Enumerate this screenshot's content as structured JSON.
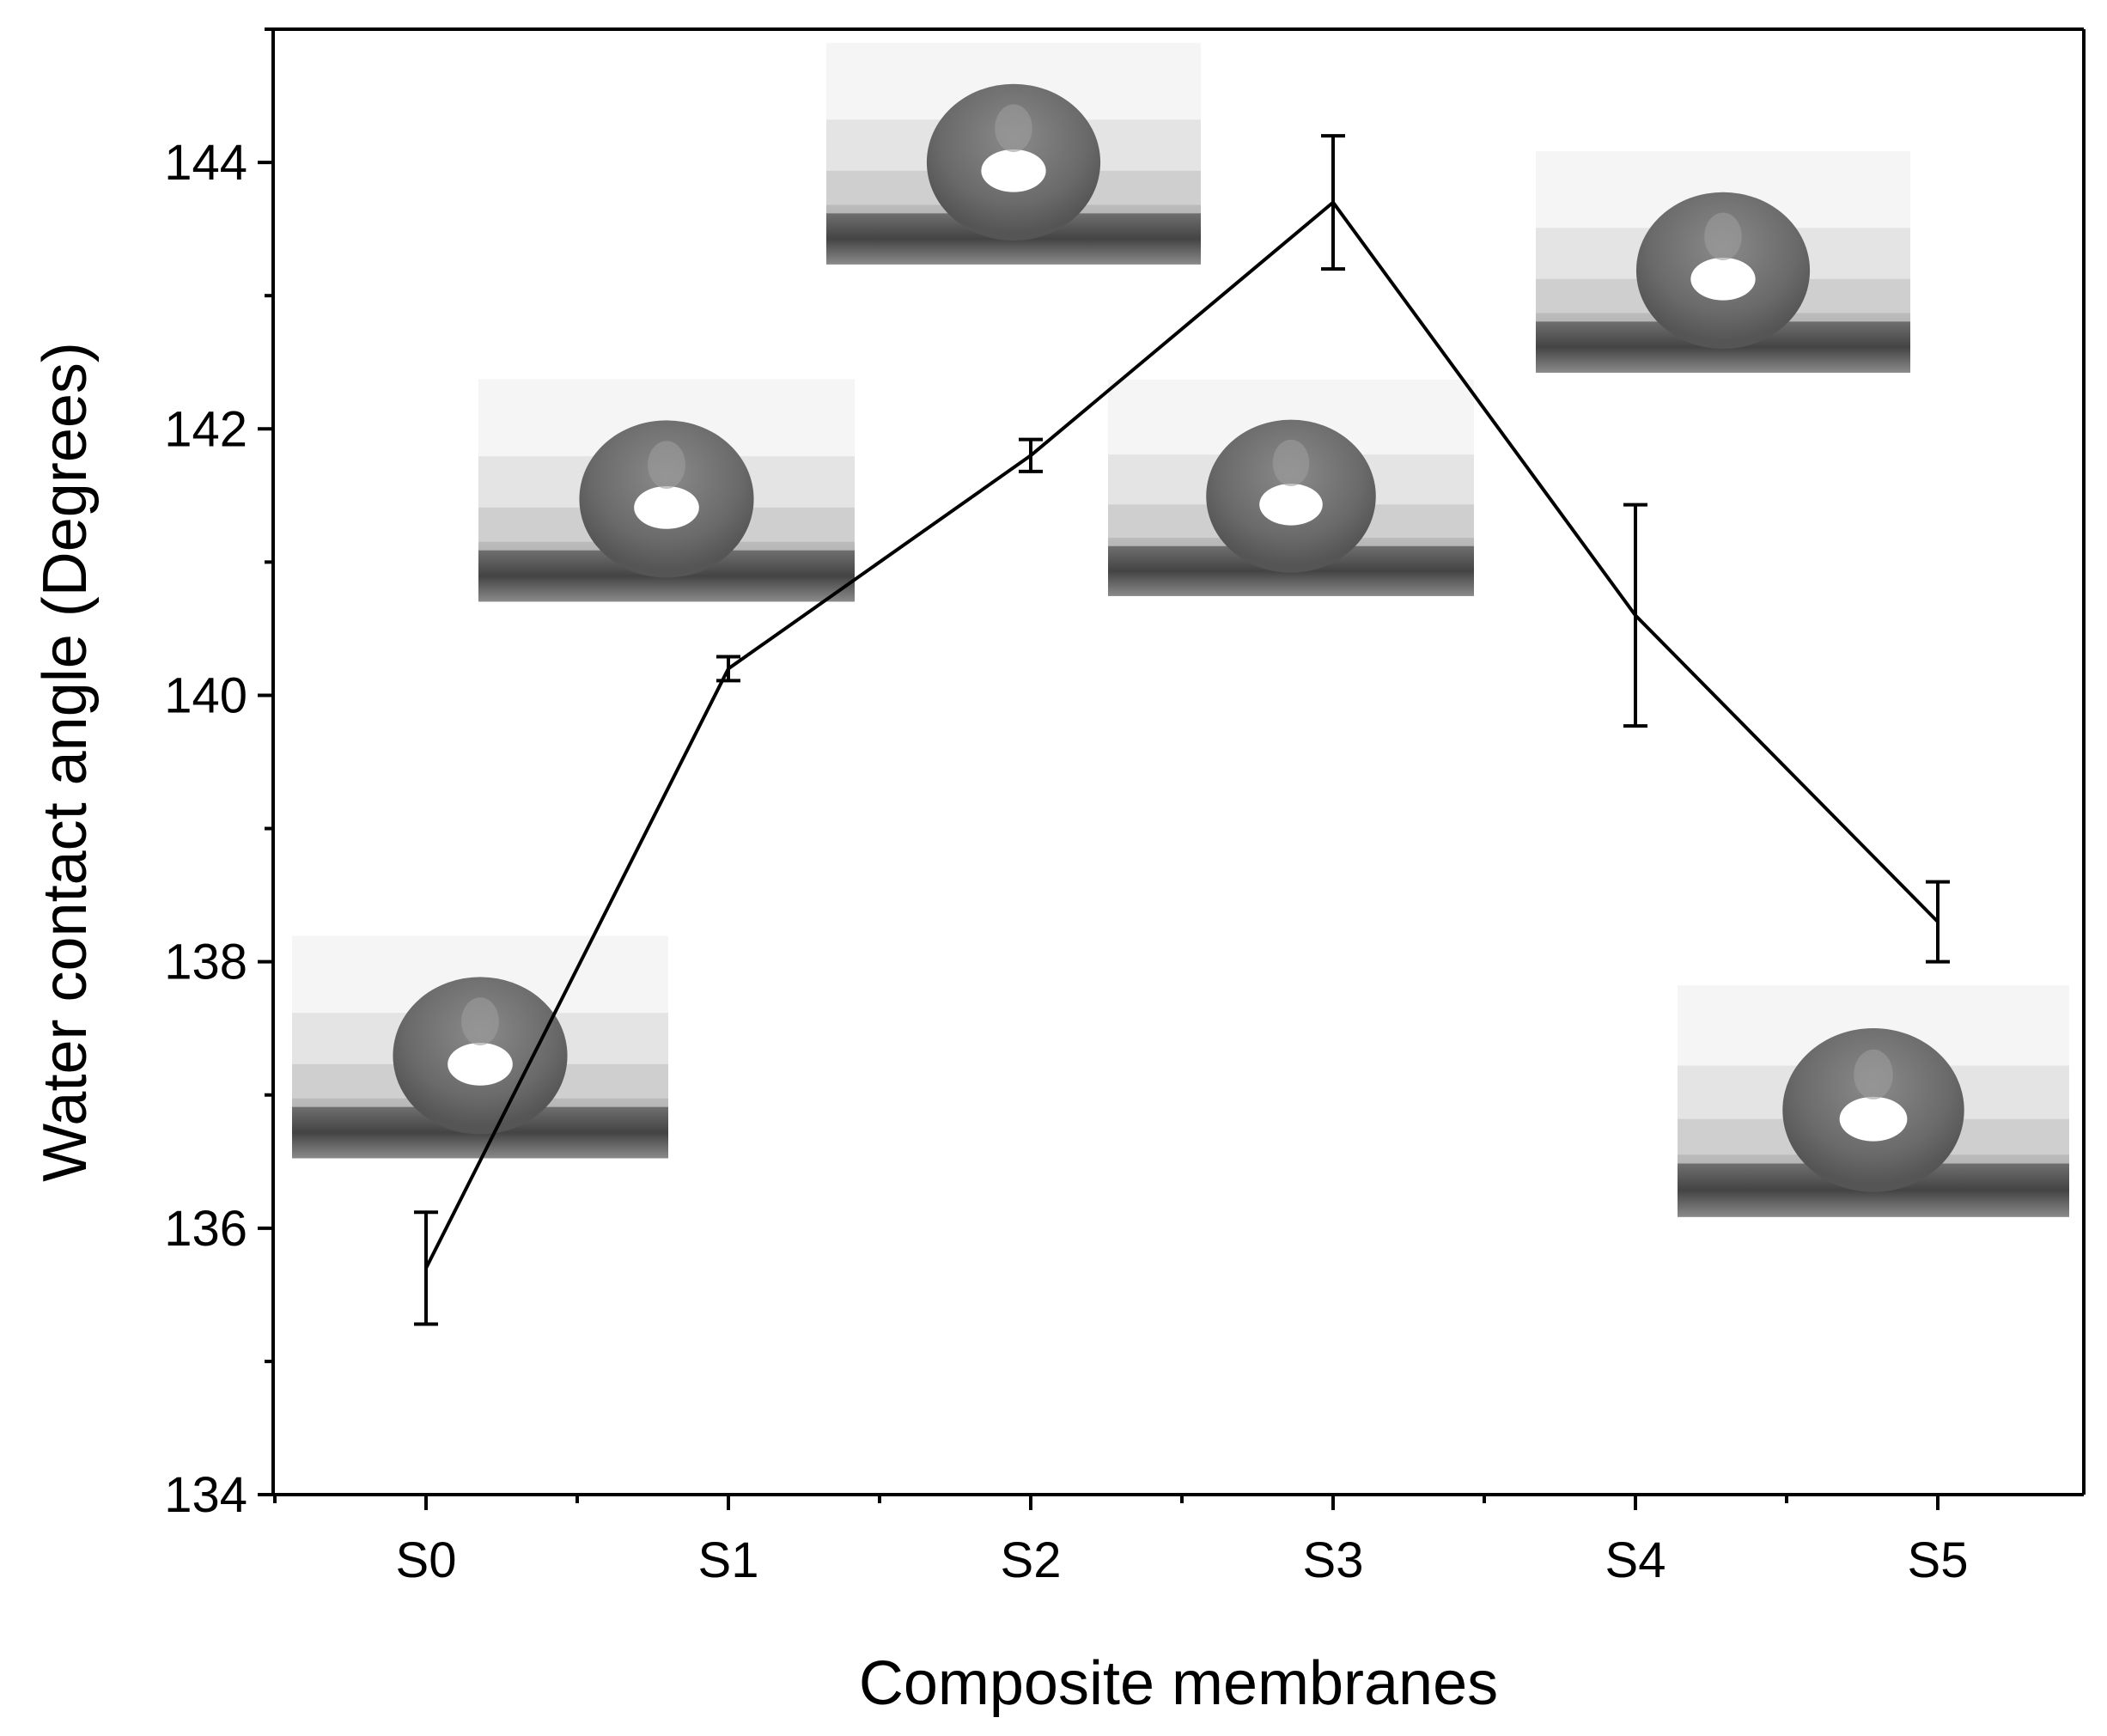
{
  "chart_data": {
    "type": "line",
    "title": "",
    "xlabel": "Composite membranes",
    "ylabel": "Water contact angle (Degrees)",
    "categories": [
      "S0",
      "S1",
      "S2",
      "S3",
      "S4",
      "S5"
    ],
    "series": [
      {
        "values": [
          135.7,
          140.2,
          141.8,
          143.7,
          140.6,
          138.3
        ],
        "error": [
          0.42,
          0.09,
          0.12,
          0.5,
          0.83,
          0.3
        ]
      }
    ],
    "ylim": [
      134,
      145
    ],
    "yticks": [
      134,
      136,
      138,
      140,
      142,
      144
    ],
    "grid": false,
    "legend": "none",
    "insets": [
      {
        "category": "S0",
        "content": "water-droplet-photo"
      },
      {
        "category": "S1",
        "content": "water-droplet-photo"
      },
      {
        "category": "S2",
        "content": "water-droplet-photo"
      },
      {
        "category": "S3",
        "content": "water-droplet-photo"
      },
      {
        "category": "S4",
        "content": "water-droplet-photo"
      },
      {
        "category": "S5",
        "content": "water-droplet-photo"
      }
    ],
    "colors": {
      "line": "#000000",
      "background": "#ffffff"
    }
  }
}
